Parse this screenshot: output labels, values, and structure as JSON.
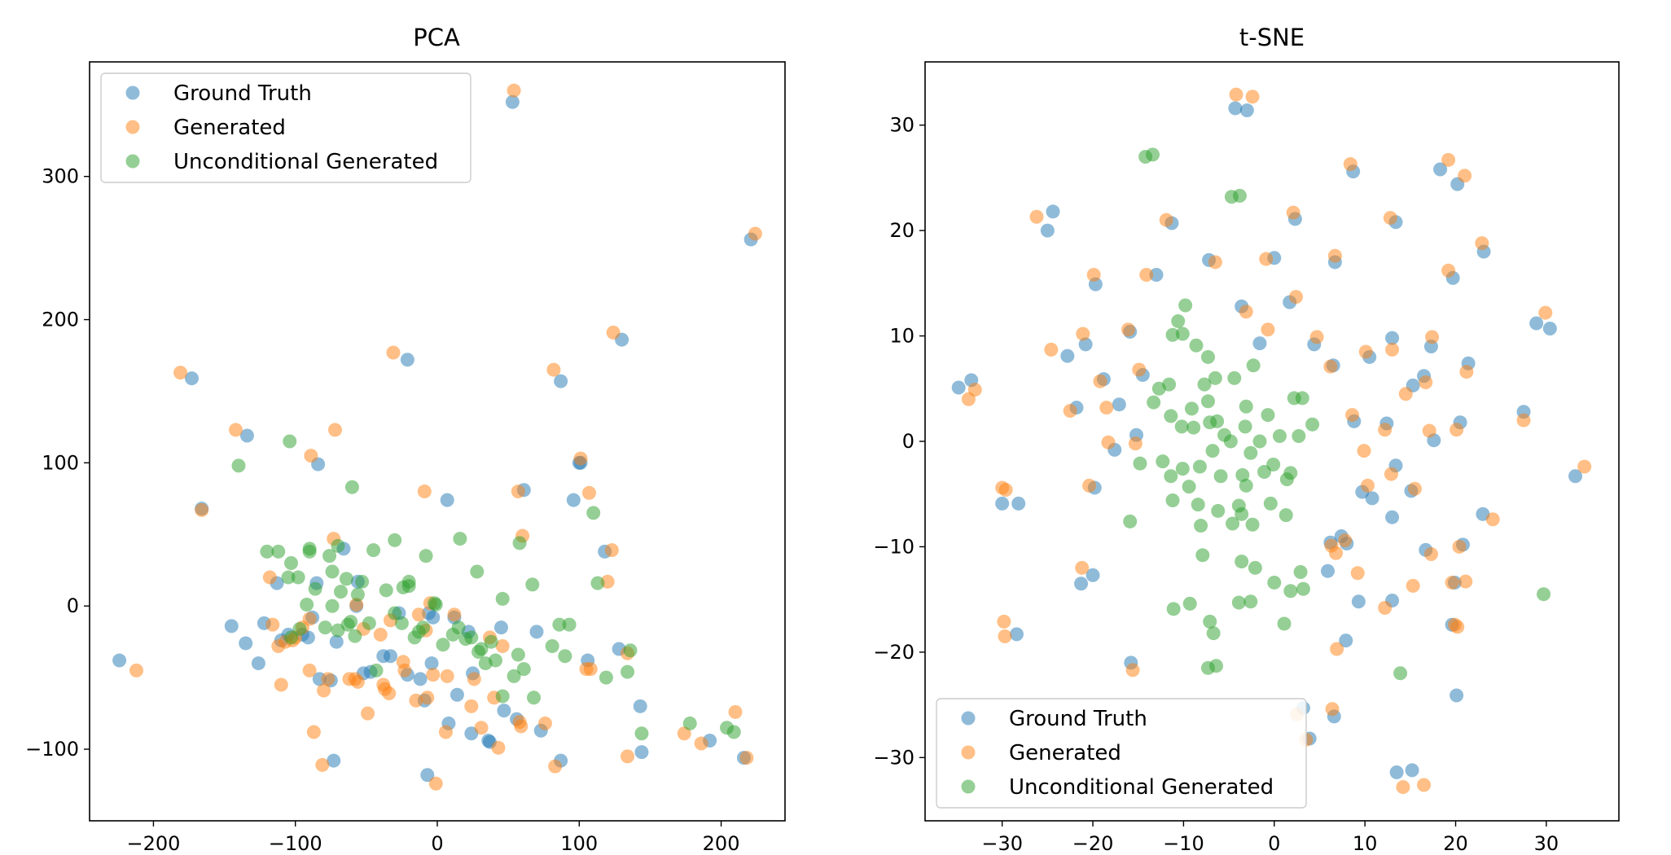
{
  "colors": {
    "ground_truth": "#1f77b4",
    "generated": "#ff7f0e",
    "unconditional": "#2ca02c",
    "axes": "#000000",
    "legend_frame": "#cccccc"
  },
  "chart_data": [
    {
      "type": "scatter",
      "title": "PCA",
      "xlabel": "",
      "ylabel": "",
      "xlim": [
        -245,
        245
      ],
      "ylim": [
        -150,
        380
      ],
      "xticks": [
        -200,
        -100,
        0,
        100,
        200
      ],
      "yticks": [
        -100,
        0,
        100,
        200,
        300
      ],
      "xtick_labels": [
        "−200",
        "−100",
        "0",
        "100",
        "200"
      ],
      "ytick_labels": [
        "−100",
        "0",
        "100",
        "200",
        "300"
      ],
      "legend_position": "upper-left",
      "series": [
        {
          "name": "Ground Truth",
          "color_key": "ground_truth",
          "x": [
            53,
            221,
            -173,
            130,
            -21,
            87,
            101,
            -134,
            -84,
            7,
            61,
            96,
            118,
            -66,
            -56,
            -113,
            -122,
            -88,
            -85,
            -57,
            -33,
            -27,
            -6,
            -3,
            12,
            22,
            45,
            70,
            106,
            128,
            143,
            -95,
            -145,
            -135,
            -105,
            -91,
            -71,
            -52,
            -47,
            -38,
            -21,
            -12,
            -4,
            -9,
            14,
            25,
            37,
            47,
            56,
            73,
            87,
            100,
            -224,
            -110,
            -126,
            -83,
            -73,
            -7,
            8,
            24,
            36,
            144,
            192,
            216,
            -75,
            -166
          ],
          "y": [
            352,
            256,
            159,
            186,
            172,
            157,
            100,
            119,
            99,
            74,
            81,
            74,
            38,
            40,
            17,
            16,
            -12,
            -8,
            16,
            0,
            -35,
            -5,
            -5,
            -8,
            -8,
            -18,
            -15,
            -18,
            -38,
            -30,
            -70,
            -20,
            -14,
            -26,
            -20,
            -22,
            -25,
            -47,
            -46,
            -35,
            -48,
            -51,
            -40,
            -66,
            -62,
            -47,
            -95,
            -73,
            -79,
            -87,
            -108,
            100,
            -38,
            -24,
            -40,
            -51,
            -108,
            -118,
            -82,
            -89,
            -94,
            -102,
            -94,
            -106,
            -52,
            68
          ]
        },
        {
          "name": "Generated",
          "color_key": "generated",
          "x": [
            54,
            224,
            -181,
            124,
            -31,
            82,
            101,
            -142,
            -89,
            -9,
            57,
            107,
            123,
            -72,
            -73,
            -118,
            -116,
            -102,
            -90,
            -57,
            -52,
            -40,
            -33,
            -13,
            -5,
            -8,
            12,
            37,
            46,
            59,
            108,
            134,
            120,
            -107,
            -95,
            -90,
            -77,
            -62,
            -56,
            -49,
            -37,
            -34,
            -23,
            -15,
            -7,
            -1,
            7,
            24,
            31,
            43,
            58,
            76,
            83,
            105,
            -212,
            -100,
            -110,
            -87,
            -112,
            -81,
            -58,
            -38,
            -24,
            -3,
            6,
            26,
            40,
            134,
            174,
            186,
            210,
            218,
            -80,
            -166,
            60
          ],
          "y": [
            360,
            260,
            163,
            191,
            177,
            165,
            103,
            123,
            105,
            80,
            80,
            79,
            39,
            123,
            47,
            20,
            -13,
            -24,
            -9,
            1,
            -16,
            -20,
            -10,
            -6,
            2,
            -17,
            -6,
            -22,
            -28,
            -84,
            -44,
            -33,
            17,
            -25,
            -15,
            -45,
            -51,
            -51,
            -53,
            -75,
            -58,
            -61,
            -45,
            -66,
            -64,
            -124,
            -49,
            -70,
            -85,
            -99,
            -81,
            -82,
            -112,
            -44,
            -45,
            -22,
            -55,
            -88,
            -28,
            -111,
            -51,
            -55,
            -39,
            -48,
            -88,
            -51,
            -64,
            -105,
            -89,
            -96,
            -74,
            -106,
            -59,
            67,
            49
          ]
        },
        {
          "name": "Unconditional Generated",
          "color_key": "unconditional",
          "x": [
            -104,
            -140,
            -60,
            -112,
            -103,
            -98,
            -90,
            -76,
            -74,
            -68,
            -64,
            -56,
            -53,
            -45,
            -30,
            -20,
            -8,
            -2,
            16,
            28,
            46,
            58,
            67,
            86,
            110,
            -105,
            -92,
            -86,
            -74,
            -61,
            -58,
            -48,
            -36,
            -30,
            -24,
            -20,
            -16,
            -10,
            -1,
            11,
            20,
            24,
            31,
            34,
            38,
            46,
            57,
            68,
            81,
            93,
            119,
            134,
            144,
            -103,
            -97,
            -79,
            -70,
            -63,
            -43,
            -25,
            -13,
            4,
            15,
            29,
            41,
            54,
            61,
            90,
            136,
            178,
            204,
            209,
            113,
            -90,
            -120,
            -70
          ],
          "y": [
            115,
            98,
            83,
            38,
            30,
            20,
            40,
            35,
            24,
            10,
            19,
            8,
            17,
            39,
            46,
            17,
            35,
            2,
            47,
            24,
            5,
            44,
            15,
            -13,
            65,
            20,
            1,
            12,
            0,
            -11,
            -21,
            -12,
            11,
            -5,
            13,
            14,
            -22,
            -15,
            1,
            -20,
            -23,
            -22,
            -30,
            -40,
            -25,
            -63,
            -34,
            -64,
            -28,
            -13,
            -50,
            -46,
            -89,
            -22,
            -16,
            -15,
            -17,
            -13,
            -45,
            -12,
            -18,
            -27,
            -15,
            -32,
            -38,
            -49,
            -44,
            -35,
            -31,
            -82,
            -85,
            -88,
            16,
            38,
            38,
            42
          ]
        }
      ]
    },
    {
      "type": "scatter",
      "title": "t-SNE",
      "xlabel": "",
      "ylabel": "",
      "xlim": [
        -38.5,
        38
      ],
      "ylim": [
        -36,
        36
      ],
      "xticks": [
        -30,
        -20,
        -10,
        0,
        10,
        20,
        30
      ],
      "yticks": [
        -30,
        -20,
        -10,
        0,
        10,
        20,
        30
      ],
      "xtick_labels": [
        "−30",
        "−20",
        "−10",
        "0",
        "10",
        "20",
        "30"
      ],
      "ytick_labels": [
        "−30",
        "−20",
        "−10",
        "0",
        "10",
        "20",
        "30"
      ],
      "legend_position": "lower-left",
      "series": [
        {
          "name": "Ground Truth",
          "color_key": "ground_truth",
          "x": [
            -4.3,
            -3,
            8.7,
            18.3,
            20.2,
            -24.4,
            -25,
            -11.3,
            2.3,
            13.4,
            -7.2,
            0,
            6.7,
            23.1,
            -19.7,
            -13,
            -3.6,
            1.7,
            19.7,
            -22.8,
            -20.8,
            -15.9,
            -1.6,
            4.4,
            6.5,
            13,
            17.3,
            21.4,
            -18.8,
            -17.1,
            -14.5,
            10.5,
            15.3,
            16.5,
            28.9,
            30.4,
            -34.8,
            -33.4,
            -21.8,
            -15.2,
            -17.6,
            8.8,
            12.4,
            17.6,
            20.5,
            27.5,
            33.2,
            10.8,
            13.4,
            -19.8,
            9.7,
            15.1,
            8,
            13,
            20.8,
            23,
            6.2,
            19.9,
            -30,
            -28.2,
            7.4,
            5.9,
            9.3,
            16.7,
            19.6,
            13,
            20.1,
            -21.3,
            -20,
            -28.4,
            -15.8,
            7.9,
            3.2,
            6.6,
            3.9,
            13.5,
            15.2
          ],
          "y": [
            31.6,
            31.4,
            25.6,
            25.8,
            24.4,
            21.8,
            20,
            20.7,
            21.1,
            20.8,
            17.2,
            17.4,
            17,
            18,
            14.9,
            15.8,
            12.8,
            13.2,
            15.5,
            8.1,
            9.2,
            10.4,
            9.3,
            9.2,
            7.2,
            9.8,
            9,
            7.4,
            5.9,
            3.5,
            6.3,
            8,
            5.3,
            6.2,
            11.2,
            10.7,
            5.1,
            5.8,
            3.2,
            0.6,
            -0.8,
            1.9,
            1.7,
            0.1,
            1.8,
            2.8,
            -3.3,
            -5.4,
            -2.3,
            -4.4,
            -4.8,
            -4.7,
            -9.7,
            -7.2,
            -9.8,
            -6.9,
            -9.6,
            -13.4,
            -5.9,
            -5.9,
            -9,
            -12.3,
            -15.2,
            -10.3,
            -17.4,
            -15.1,
            -24.1,
            -13.5,
            -12.7,
            -18.3,
            -21,
            -18.9,
            -25.3,
            -26.1,
            -28.2,
            -31.4,
            -31.2
          ]
        },
        {
          "name": "Generated",
          "color_key": "generated",
          "x": [
            -4.2,
            -2.4,
            8.4,
            19.2,
            21,
            -26.2,
            -11.9,
            2.1,
            12.8,
            -6.5,
            -0.9,
            6.7,
            22.9,
            -19.9,
            -14.1,
            -3.1,
            2.4,
            19.2,
            -24.6,
            -21.1,
            -16.1,
            -0.7,
            4.7,
            6.2,
            13,
            17.4,
            21.2,
            -19.2,
            -18.5,
            -14.9,
            10.1,
            14.5,
            16.7,
            29.9,
            34.2,
            -33.7,
            -33,
            -22.5,
            -15.3,
            -18.3,
            8.6,
            12.2,
            17.1,
            20.1,
            27.5,
            9.9,
            12.9,
            -20.4,
            10.3,
            15.5,
            17.3,
            20.4,
            24.1,
            7.8,
            6.8,
            19.6,
            -30,
            -29.6,
            9.2,
            6.3,
            15.3,
            19.9,
            21.1,
            12.2,
            20.2,
            -21.2,
            -29.8,
            -29.7,
            -15.6,
            6.9,
            2.5,
            6.4,
            3.5,
            14.2,
            16.5
          ],
          "y": [
            32.9,
            32.7,
            26.3,
            26.7,
            25.2,
            21.3,
            21,
            21.7,
            21.2,
            17,
            17.3,
            17.6,
            18.8,
            15.8,
            15.8,
            12.3,
            13.7,
            16.2,
            8.7,
            10.2,
            10.6,
            10.6,
            9.9,
            7.1,
            8.7,
            9.9,
            6.6,
            5.7,
            3.2,
            6.8,
            8.5,
            4.5,
            5.6,
            12.2,
            -2.4,
            4,
            4.9,
            2.9,
            -0.2,
            -0.1,
            2.5,
            1.1,
            1,
            1.1,
            2,
            -0.9,
            -3.1,
            -4.2,
            -4.2,
            -4.5,
            -10.7,
            -10,
            -7.4,
            -9.4,
            -10.6,
            -13.4,
            -4.4,
            -4.6,
            -12.5,
            -9.9,
            -13.7,
            -17.4,
            -13.3,
            -15.8,
            -17.6,
            -12,
            -17.1,
            -18.5,
            -21.7,
            -19.7,
            -25.9,
            -25.4,
            -28.3,
            -32.8,
            -32.6
          ]
        },
        {
          "name": "Unconditional Generated",
          "color_key": "unconditional",
          "x": [
            -14.2,
            -13.4,
            -4.7,
            -3.8,
            -9.8,
            -10.6,
            -10.1,
            -11.2,
            -8.6,
            -7.3,
            -6.5,
            -4.4,
            -2.3,
            -12.7,
            -11.6,
            -7.7,
            -7.3,
            -9.1,
            -6.3,
            -3.1,
            -0.7,
            2.2,
            3.1,
            -13.3,
            -11.4,
            -10.2,
            -8.9,
            -7.1,
            -5.5,
            -3.2,
            -1.6,
            0.6,
            2.7,
            4.2,
            -14.8,
            -12.3,
            -10.1,
            -8.2,
            -6.8,
            -4.8,
            -2.6,
            -0.1,
            1.8,
            -11.4,
            -9.4,
            -8.4,
            -5.9,
            -3.5,
            -1.1,
            1.4,
            -3.1,
            -3.9,
            -3.6,
            -0.4,
            1.3,
            -8.1,
            -6.2,
            -4.6,
            -2.4,
            -11.2,
            -7.9,
            -3.6,
            -2.1,
            0,
            1.8,
            2.9,
            3.2,
            -11.1,
            -9.3,
            -7.1,
            -6.7,
            -3.9,
            -2.6,
            -7.3,
            -6.4,
            -15.9,
            1.1,
            13.9,
            29.7
          ],
          "y": [
            27,
            27.2,
            23.2,
            23.3,
            12.9,
            11.4,
            10.2,
            10.1,
            9.1,
            8,
            6,
            6,
            7.2,
            5,
            5.4,
            5.4,
            3.8,
            3.1,
            1.9,
            3.3,
            2.5,
            4.1,
            4.1,
            3.7,
            2.4,
            1.4,
            1.3,
            1.8,
            0.6,
            1.4,
            0,
            0.5,
            0.5,
            1.6,
            -2.1,
            -1.9,
            -2.6,
            -2.4,
            -0.9,
            0,
            -1.1,
            -2.2,
            -3,
            -3.3,
            -4.3,
            -6,
            -3.3,
            -3.2,
            -2.9,
            -3.6,
            -4.2,
            -6.1,
            -6.9,
            -5.9,
            -7,
            -8,
            -6.6,
            -7.8,
            -7.9,
            -5.6,
            -10.8,
            -11.4,
            -12,
            -13.4,
            -14.2,
            -12.4,
            -14,
            -15.9,
            -15.4,
            -17.1,
            -18.2,
            -15.3,
            -15.2,
            -21.5,
            -21.3,
            -7.6,
            -17.3,
            -22,
            -14.5
          ]
        }
      ]
    }
  ],
  "legend": {
    "entries": [
      {
        "label": "Ground Truth",
        "color_key": "ground_truth"
      },
      {
        "label": "Generated",
        "color_key": "generated"
      },
      {
        "label": "Unconditional Generated",
        "color_key": "unconditional"
      }
    ]
  }
}
